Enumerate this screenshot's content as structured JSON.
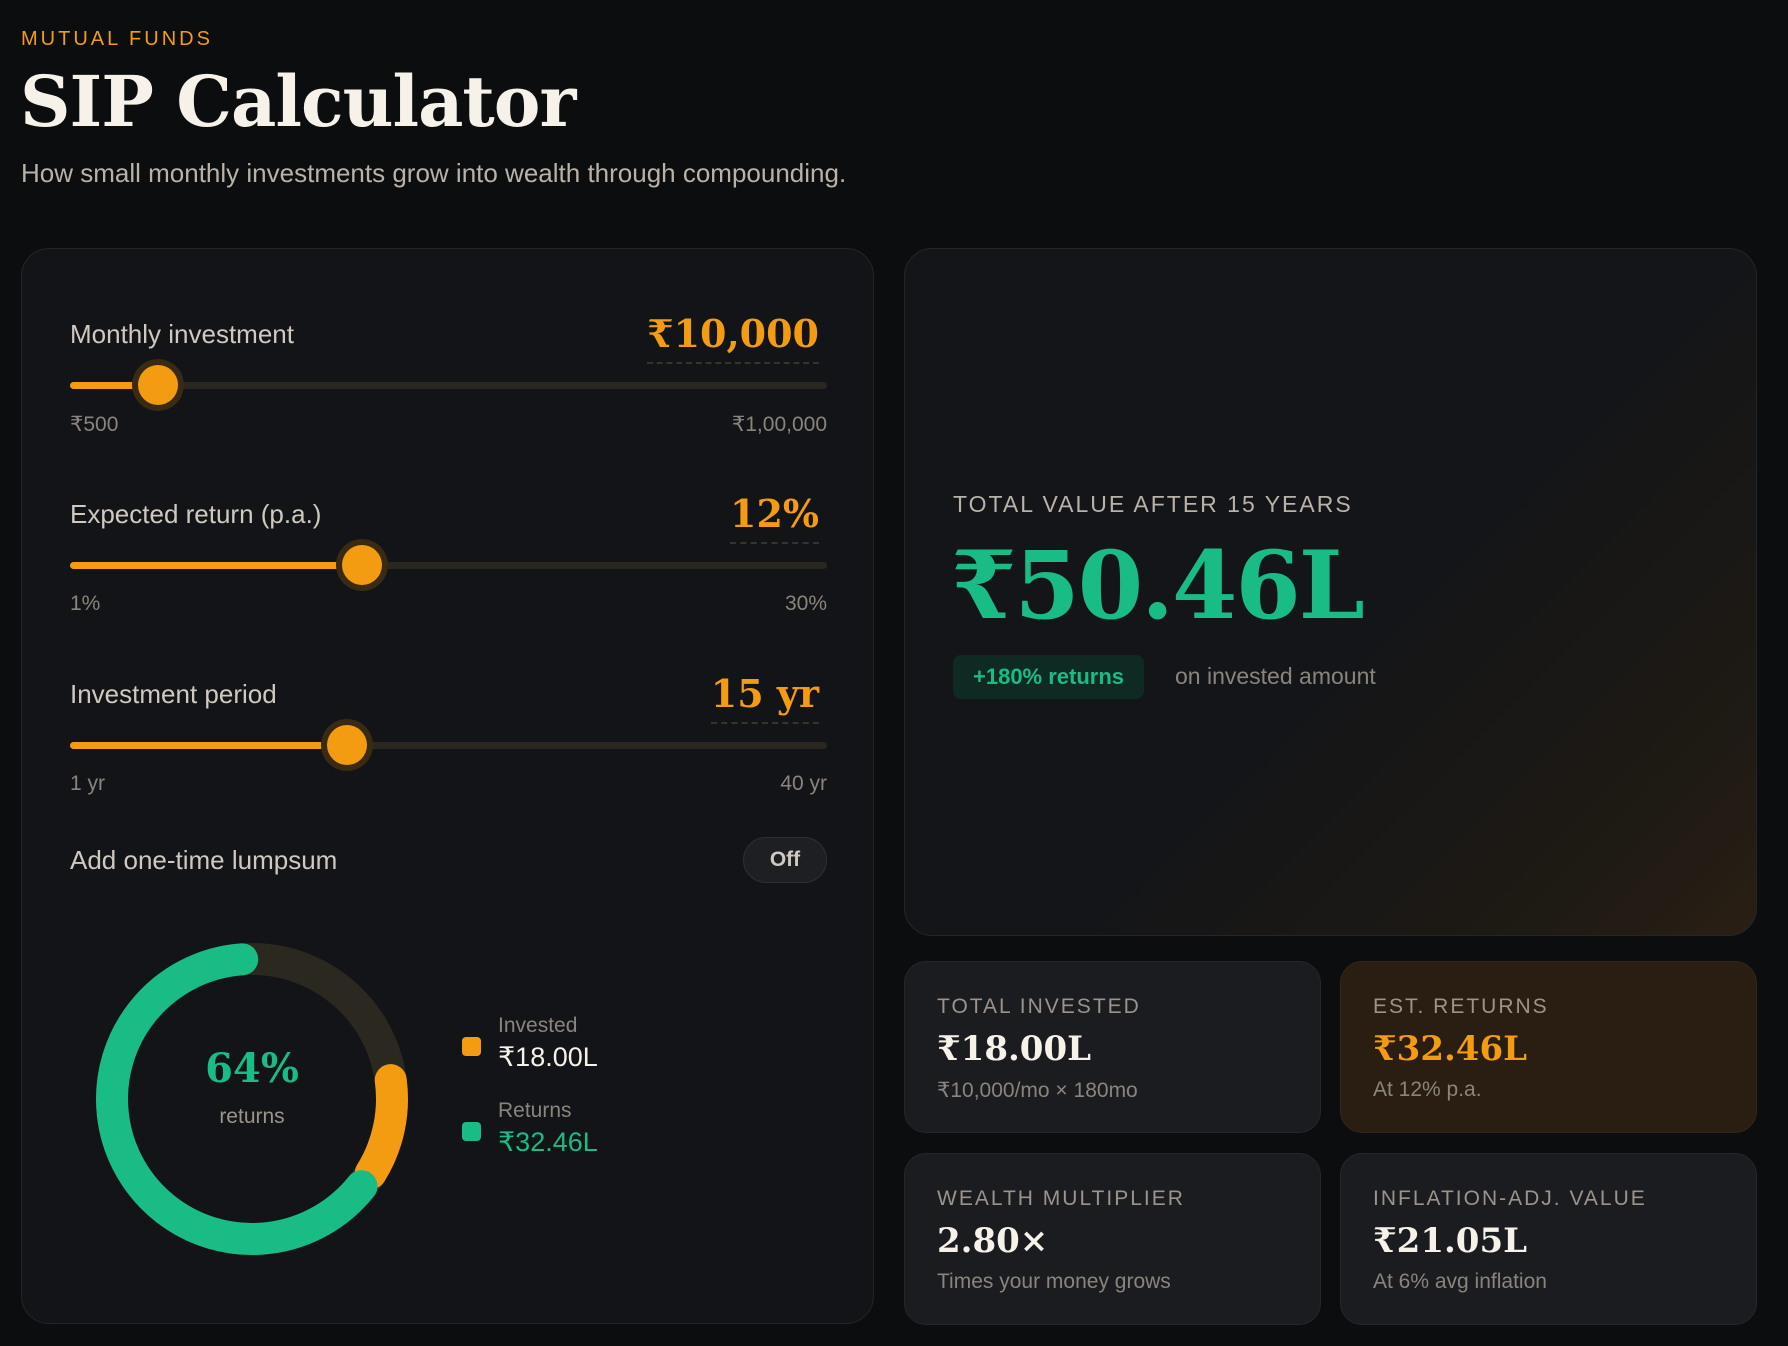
{
  "header": {
    "eyebrow": "MUTUAL FUNDS",
    "title": "SIP Calculator",
    "subtitle": "How small monthly investments grow into wealth through compounding."
  },
  "sliders": [
    {
      "label": "Monthly investment",
      "value": "₹10,000",
      "min_label": "₹500",
      "max_label": "₹1,00,000",
      "fraction": 0.116
    },
    {
      "label": "Expected return (p.a.)",
      "value": "12%",
      "min_label": "1%",
      "max_label": "30%",
      "fraction": 0.386
    },
    {
      "label": "Investment period",
      "value": "15 yr",
      "min_label": "1 yr",
      "max_label": "40 yr",
      "fraction": 0.366
    }
  ],
  "lumpsum": {
    "label": "Add one-time lumpsum",
    "toggle": "Off"
  },
  "donut": {
    "percent_label": "64%",
    "sub_label": "returns",
    "returns_fraction": 0.643,
    "legend": [
      {
        "name": "Invested",
        "value": "₹18.00L",
        "color": "#f39c12"
      },
      {
        "name": "Returns",
        "value": "₹32.46L",
        "color": "#1abc85"
      }
    ]
  },
  "hero": {
    "label": "TOTAL VALUE AFTER 15 YEARS",
    "value": "₹50.46L",
    "badge": "+180% returns",
    "note": "on invested amount"
  },
  "stats": [
    {
      "label": "TOTAL INVESTED",
      "value": "₹18.00L",
      "sub": "₹10,000/mo × 180mo"
    },
    {
      "label": "EST. RETURNS",
      "value": "₹32.46L",
      "sub": "At 12% p.a."
    },
    {
      "label": "WEALTH MULTIPLIER",
      "value": "2.80×",
      "sub": "Times your money grows"
    },
    {
      "label": "INFLATION-ADJ. VALUE",
      "value": "₹21.05L",
      "sub": "At 6% avg inflation"
    }
  ],
  "colors": {
    "accent": "#f39c12",
    "positive": "#1abc85",
    "background": "#0c0d0f"
  }
}
